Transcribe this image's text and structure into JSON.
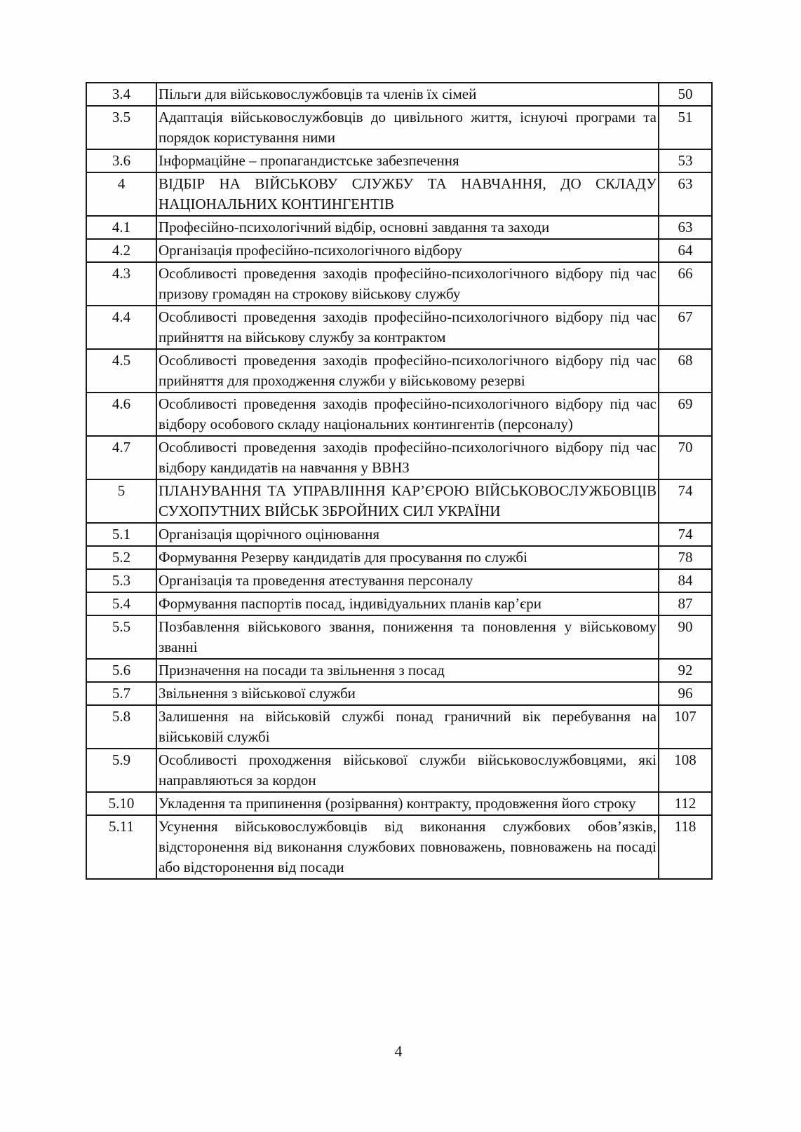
{
  "table": {
    "rows": [
      {
        "num": "3.4",
        "title": "Пільги для військовослужбовців та членів їх сімей",
        "page": "50"
      },
      {
        "num": "3.5",
        "title": "Адаптація військовослужбовців до цивільного життя, існуючі програми та порядок користування ними",
        "page": "51"
      },
      {
        "num": "3.6",
        "title": "Інформаційне – пропагандистське забезпечення",
        "page": "53"
      },
      {
        "num": "4",
        "title": "ВІДБІР НА ВІЙСЬКОВУ СЛУЖБУ ТА НАВЧАННЯ, ДО СКЛАДУ НАЦІОНАЛЬНИХ КОНТИНГЕНТІВ",
        "page": "63"
      },
      {
        "num": "4.1",
        "title": "Професійно-психологічний відбір, основні завдання та заходи",
        "page": "63"
      },
      {
        "num": "4.2",
        "title": "Організація професійно-психологічного відбору",
        "page": "64"
      },
      {
        "num": "4.3",
        "title": "Особливості проведення заходів професійно-психологічного відбору під час призову громадян на строкову військову службу",
        "page": "66"
      },
      {
        "num": "4.4",
        "title": "Особливості проведення заходів професійно-психологічного відбору під час прийняття на військову службу за контрактом",
        "page": "67"
      },
      {
        "num": "4.5",
        "title": "Особливості проведення заходів професійно-психологічного відбору під час прийняття для проходження служби у військовому резерві",
        "page": "68"
      },
      {
        "num": "4.6",
        "title": "Особливості проведення заходів професійно-психологічного відбору під час відбору особового складу національних контингентів (персоналу)",
        "page": "69"
      },
      {
        "num": "4.7",
        "title": "Особливості проведення заходів професійно-психологічного відбору під час відбору кандидатів на навчання у ВВНЗ",
        "page": "70"
      },
      {
        "num": "5",
        "title": "ПЛАНУВАННЯ ТА УПРАВЛІННЯ КАР’ЄРОЮ ВІЙСЬКОВОСЛУЖБОВЦІВ СУХОПУТНИХ ВІЙСЬК ЗБРОЙНИХ СИЛ УКРАЇНИ",
        "page": "74"
      },
      {
        "num": "5.1",
        "title": "Організація щорічного оцінювання",
        "page": "74"
      },
      {
        "num": "5.2",
        "title": "Формування Резерву кандидатів для просування по службі",
        "page": "78"
      },
      {
        "num": "5.3",
        "title": "Організація та проведення атестування персоналу",
        "page": "84"
      },
      {
        "num": "5.4",
        "title": "Формування паспортів посад, індивідуальних планів кар’єри",
        "page": "87"
      },
      {
        "num": "5.5",
        "title": "Позбавлення військового звання, пониження та поновлення у військовому званні",
        "page": "90"
      },
      {
        "num": "5.6",
        "title": "Призначення на посади та звільнення з посад",
        "page": "92"
      },
      {
        "num": "5.7",
        "title": "Звільнення з військової служби",
        "page": "96"
      },
      {
        "num": "5.8",
        "title": "Залишення на військовій службі понад граничний вік перебування на військовій службі",
        "page": "107"
      },
      {
        "num": "5.9",
        "title": "Особливості проходження військової служби військовослужбовцями, які направляються за кордон",
        "page": "108"
      },
      {
        "num": "5.10",
        "title": "Укладення та припинення (розірвання) контракту, продовження його строку",
        "page": "112"
      },
      {
        "num": "5.11",
        "title": "Усунення військовослужбовців від виконання службових обов’язків, відсторонення від виконання службових повноважень, повноважень на посаді або відсторонення від посади",
        "page": "118"
      }
    ]
  },
  "footer": {
    "page_number": "4"
  }
}
